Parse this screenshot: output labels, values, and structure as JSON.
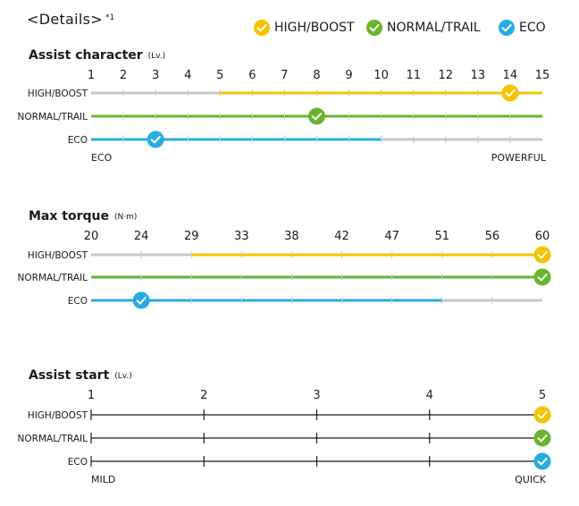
{
  "header": {
    "title": "<Details>",
    "note": "*1"
  },
  "legend": [
    {
      "label": "HIGH/BOOST",
      "color": "#f5c400"
    },
    {
      "label": "NORMAL/TRAIL",
      "color": "#6ab42d"
    },
    {
      "label": "ECO",
      "color": "#29abe2"
    }
  ],
  "colors": {
    "high": "#f5c400",
    "normal": "#6ab42d",
    "eco": "#29abe2",
    "track": "#c8c8c8",
    "axis": "#1a1a1a"
  },
  "chart_data": [
    {
      "type": "range",
      "title": "Assist character",
      "unit": "(Lv.)",
      "ticks": [
        "1",
        "2",
        "3",
        "4",
        "5",
        "6",
        "7",
        "8",
        "9",
        "10",
        "11",
        "12",
        "13",
        "14",
        "15"
      ],
      "min": 1,
      "max": 15,
      "style": "colored",
      "series": [
        {
          "name": "HIGH/BOOST",
          "range": [
            5,
            15
          ],
          "marker": 14,
          "color_key": "high"
        },
        {
          "name": "NORMAL/TRAIL",
          "range": [
            1,
            15
          ],
          "marker": 8,
          "color_key": "normal"
        },
        {
          "name": "ECO",
          "range": [
            1,
            10
          ],
          "marker": 3,
          "color_key": "eco"
        }
      ],
      "left_end_label": "ECO",
      "right_end_label": "POWERFUL"
    },
    {
      "type": "range",
      "title": "Max torque",
      "unit": "(N·m)",
      "ticks": [
        "20",
        "24",
        "29",
        "33",
        "38",
        "42",
        "47",
        "51",
        "56",
        "60"
      ],
      "min": 20,
      "max": 60,
      "style": "colored",
      "series": [
        {
          "name": "HIGH/BOOST",
          "range": [
            29,
            60
          ],
          "marker": 60,
          "color_key": "high"
        },
        {
          "name": "NORMAL/TRAIL",
          "range": [
            20,
            60
          ],
          "marker": 60,
          "color_key": "normal"
        },
        {
          "name": "ECO",
          "range": [
            20,
            51
          ],
          "marker": 24,
          "color_key": "eco"
        }
      ],
      "left_end_label": "",
      "right_end_label": ""
    },
    {
      "type": "range",
      "title": "Assist start",
      "unit": "(Lv.)",
      "ticks": [
        "1",
        "2",
        "3",
        "4",
        "5"
      ],
      "min": 1,
      "max": 5,
      "style": "axis",
      "series": [
        {
          "name": "HIGH/BOOST",
          "range": [
            1,
            5
          ],
          "marker": 5,
          "color_key": "high"
        },
        {
          "name": "NORMAL/TRAIL",
          "range": [
            1,
            5
          ],
          "marker": 5,
          "color_key": "normal"
        },
        {
          "name": "ECO",
          "range": [
            1,
            5
          ],
          "marker": 5,
          "color_key": "eco"
        }
      ],
      "left_end_label": "MILD",
      "right_end_label": "QUICK"
    }
  ]
}
